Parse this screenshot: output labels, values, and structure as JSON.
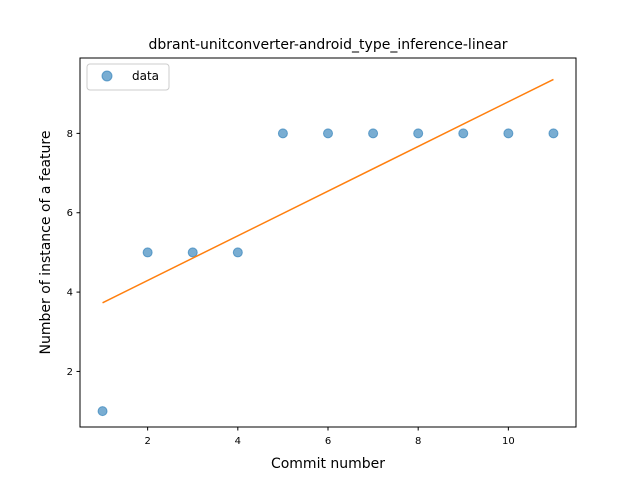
{
  "chart_data": {
    "type": "scatter",
    "title": "dbrant-unitconverter-android_type_inference-linear",
    "xlabel": "Commit number",
    "ylabel": "Number of instance of a feature",
    "xlim": [
      0.5,
      11.5
    ],
    "ylim": [
      0.6,
      9.9
    ],
    "xticks": [
      2,
      4,
      6,
      8,
      10
    ],
    "yticks": [
      2,
      4,
      6,
      8
    ],
    "grid": false,
    "legend": {
      "placement": "top-left",
      "entries": [
        "data"
      ]
    },
    "series": [
      {
        "name": "data",
        "kind": "scatter",
        "color": "#1f77b4",
        "x": [
          1,
          2,
          3,
          4,
          5,
          6,
          7,
          8,
          9,
          10,
          11
        ],
        "y": [
          1,
          5,
          5,
          5,
          8,
          8,
          8,
          8,
          8,
          8,
          8
        ]
      },
      {
        "kind": "line",
        "color": "#ff7f0e",
        "x": [
          1,
          11
        ],
        "y": [
          3.73,
          9.36
        ]
      }
    ]
  }
}
